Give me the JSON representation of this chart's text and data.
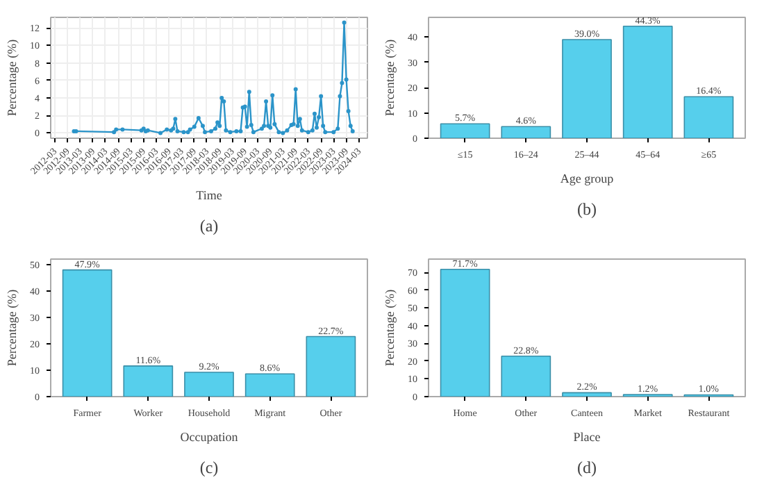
{
  "chart_data": [
    {
      "type": "line",
      "xlabel": "Time",
      "ylabel": "Percentage (%)",
      "annotations": [
        "(a)"
      ],
      "marker": "circle",
      "grid": true,
      "x": [
        "2012-12",
        "2013-01",
        "2014-07",
        "2014-08",
        "2014-11",
        "2015-08",
        "2015-09",
        "2015-10",
        "2015-11",
        "2016-05",
        "2016-08",
        "2016-10",
        "2016-11",
        "2016-12",
        "2017-01",
        "2017-04",
        "2017-06",
        "2017-07",
        "2017-09",
        "2017-11",
        "2018-01",
        "2018-02",
        "2018-05",
        "2018-07",
        "2018-08",
        "2018-09",
        "2018-10",
        "2018-11",
        "2018-12",
        "2019-02",
        "2019-05",
        "2019-07",
        "2019-08",
        "2019-09",
        "2019-10",
        "2019-11",
        "2019-12",
        "2020-01",
        "2020-05",
        "2020-06",
        "2020-07",
        "2020-08",
        "2020-09",
        "2020-10",
        "2020-11",
        "2021-01",
        "2021-03",
        "2021-05",
        "2021-07",
        "2021-08",
        "2021-09",
        "2021-10",
        "2021-11",
        "2021-12",
        "2022-03",
        "2022-05",
        "2022-06",
        "2022-07",
        "2022-08",
        "2022-09",
        "2022-10",
        "2022-11",
        "2023-03",
        "2023-05",
        "2023-06",
        "2023-07",
        "2023-08",
        "2023-09",
        "2023-10",
        "2023-11",
        "2023-12"
      ],
      "series": [
        {
          "color": "#2b94c9",
          "values": [
            0.2,
            0.2,
            0.1,
            0.4,
            0.4,
            0.3,
            0.5,
            0.2,
            0.3,
            0.0,
            0.4,
            0.3,
            0.5,
            1.6,
            0.2,
            0.1,
            0.1,
            0.4,
            0.7,
            1.7,
            0.8,
            0.1,
            0.2,
            0.5,
            1.2,
            0.8,
            4.0,
            3.6,
            0.3,
            0.1,
            0.2,
            0.2,
            2.9,
            3.0,
            0.7,
            4.7,
            0.9,
            0.1,
            0.5,
            0.8,
            3.6,
            0.8,
            0.6,
            4.3,
            1.0,
            0.1,
            0.0,
            0.3,
            0.9,
            1.0,
            5.0,
            0.8,
            1.6,
            0.3,
            0.1,
            0.3,
            2.2,
            0.6,
            1.8,
            4.2,
            0.8,
            0.1,
            0.1,
            0.5,
            4.2,
            5.7,
            12.6,
            6.1,
            2.5,
            0.8,
            0.2
          ]
        }
      ],
      "xlim": [
        "2012-01",
        "2024-07"
      ],
      "xticks": [
        "2012-03",
        "2012-09",
        "2013-03",
        "2013-09",
        "2014-03",
        "2014-09",
        "2015-03",
        "2015-09",
        "2016-03",
        "2016-09",
        "2017-03",
        "2017-09",
        "2018-03",
        "2018-09",
        "2019-03",
        "2019-09",
        "2020-03",
        "2020-09",
        "2021-03",
        "2021-09",
        "2022-03",
        "2022-09",
        "2023-03",
        "2023-09",
        "2024-03"
      ],
      "ylim": [
        -0.6,
        13.2
      ],
      "yticks": [
        0,
        2,
        4,
        6,
        8,
        10,
        12
      ]
    },
    {
      "type": "bar",
      "xlabel": "Age group",
      "ylabel": "Percentage (%)",
      "annotations": [
        "(b)"
      ],
      "grid": false,
      "categories": [
        "≤15",
        "16–24",
        "25–44",
        "45–64",
        "≥65"
      ],
      "values": [
        5.7,
        4.6,
        39.0,
        44.3,
        16.4
      ],
      "value_labels": [
        "5.7%",
        "4.6%",
        "39.0%",
        "44.3%",
        "16.4%"
      ],
      "color": "#56cfec",
      "ylim": [
        0,
        47.8
      ],
      "yticks": [
        0,
        10,
        20,
        30,
        40
      ]
    },
    {
      "type": "bar",
      "xlabel": "Occupation",
      "ylabel": "Percentage (%)",
      "annotations": [
        "(c)"
      ],
      "grid": false,
      "categories": [
        "Farmer",
        "Worker",
        "Household",
        "Migrant",
        "Other"
      ],
      "values": [
        47.9,
        11.6,
        9.2,
        8.6,
        22.7
      ],
      "value_labels": [
        "47.9%",
        "11.6%",
        "9.2%",
        "8.6%",
        "22.7%"
      ],
      "color": "#56cfec",
      "ylim": [
        0,
        52
      ],
      "yticks": [
        0,
        10,
        20,
        30,
        40,
        50
      ]
    },
    {
      "type": "bar",
      "xlabel": "Place",
      "ylabel": "Percentage (%)",
      "annotations": [
        "(d)"
      ],
      "grid": false,
      "categories": [
        "Home",
        "Other",
        "Canteen",
        "Market",
        "Restaurant"
      ],
      "values": [
        71.7,
        22.8,
        2.2,
        1.2,
        1.0
      ],
      "value_labels": [
        "71.7%",
        "22.8%",
        "2.2%",
        "1.2%",
        "1.0%"
      ],
      "color": "#56cfec",
      "ylim": [
        0,
        77.5
      ],
      "yticks": [
        0,
        10,
        20,
        30,
        40,
        50,
        60,
        70
      ]
    }
  ]
}
